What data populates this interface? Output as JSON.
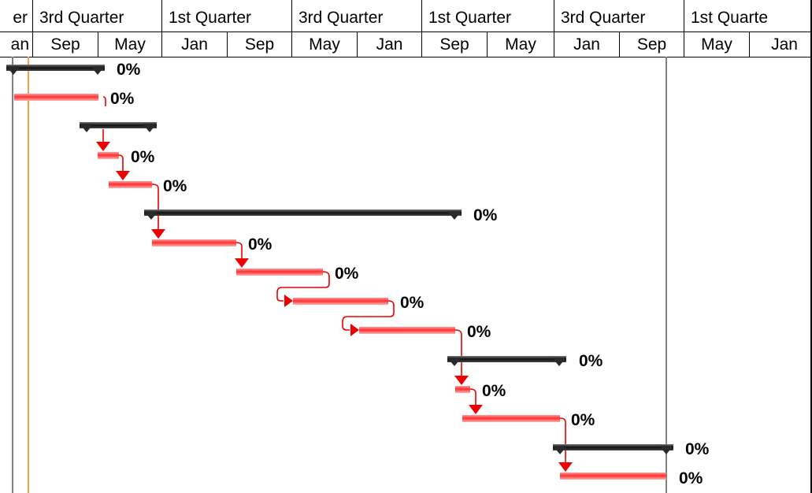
{
  "timescale": {
    "top_tier": [
      "er",
      "3rd Quarter",
      "1st Quarter",
      "3rd Quarter",
      "1st Quarter",
      "3rd Quarter",
      "1st Quarte"
    ],
    "bottom_tier": [
      "an",
      "Sep",
      "May",
      "Jan",
      "Sep",
      "May",
      "Jan",
      "Sep",
      "May",
      "Jan",
      "Sep",
      "May",
      "Jan"
    ]
  },
  "tasks": [
    {
      "kind": "summary",
      "percent_complete": "0%"
    },
    {
      "kind": "task",
      "percent_complete": "0%"
    },
    {
      "kind": "summary",
      "percent_complete": ""
    },
    {
      "kind": "task",
      "percent_complete": "0%"
    },
    {
      "kind": "task",
      "percent_complete": "0%"
    },
    {
      "kind": "summary",
      "percent_complete": "0%"
    },
    {
      "kind": "task",
      "percent_complete": "0%"
    },
    {
      "kind": "task",
      "percent_complete": "0%"
    },
    {
      "kind": "task",
      "percent_complete": "0%"
    },
    {
      "kind": "task",
      "percent_complete": "0%"
    },
    {
      "kind": "summary",
      "percent_complete": "0%"
    },
    {
      "kind": "task",
      "percent_complete": "0%"
    },
    {
      "kind": "task",
      "percent_complete": "0%"
    },
    {
      "kind": "summary",
      "percent_complete": "0%"
    },
    {
      "kind": "task",
      "percent_complete": "0%"
    }
  ],
  "colors": {
    "task_bar": "#ff4d4d",
    "summary_bar": "#2a2a2a",
    "link": "#ee0000",
    "current_date_line": "#f5a050",
    "project_line": "#808080"
  }
}
